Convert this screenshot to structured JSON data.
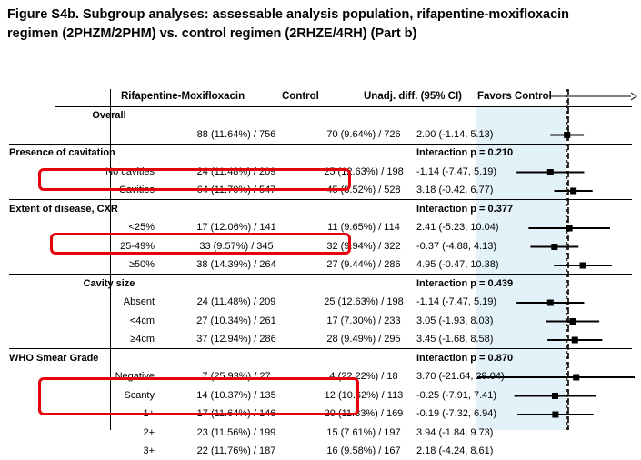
{
  "title_line1": "Figure S4b.  Subgroup analyses: assessable analysis population, rifapentine-moxifloxacin",
  "title_line2": "regimen (2PHZM/2PHM) vs. control regimen (2RHZE/4RH) (Part b)",
  "headers": {
    "col1": "Rifapentine-Moxifloxacin",
    "col2": "Control",
    "col3": "Unadj. diff. (95% CI)",
    "favors": "Favors Control"
  },
  "rows": [
    {
      "type": "group",
      "label": "Overall",
      "col1": "",
      "col2": "",
      "col3": ""
    },
    {
      "type": "data",
      "label": "",
      "col1": "88 (11.64%) / 756",
      "col2": "70 (9.64%) / 726",
      "col3": "2.00 (-1.14, 5.13)",
      "est": 2.0,
      "lo": -1.14,
      "hi": 5.13
    },
    {
      "type": "section",
      "label": "Presence of cavitation",
      "col1": "",
      "col2": "",
      "col3": "Interaction p = 0.210"
    },
    {
      "type": "data",
      "label": "No cavities",
      "col1": "24 (11.48%) / 209",
      "col2": "25 (12.63%) / 198",
      "col3": "-1.14 (-7.47, 5.19)",
      "est": -1.14,
      "lo": -7.47,
      "hi": 5.19
    },
    {
      "type": "data",
      "label": "Cavities",
      "col1": "64 (11.70%) / 547",
      "col2": "45 (8.52%) / 528",
      "col3": "3.18 (-0.42, 6.77)",
      "est": 3.18,
      "lo": -0.42,
      "hi": 6.77
    },
    {
      "type": "section",
      "label": "Extent of disease, CXR",
      "col1": "",
      "col2": "",
      "col3": "Interaction p = 0.377"
    },
    {
      "type": "data",
      "label": "<25%",
      "col1": "17 (12.06%) / 141",
      "col2": "11 (9.65%) / 114",
      "col3": "2.41 (-5.23, 10.04)",
      "est": 2.41,
      "lo": -5.23,
      "hi": 10.04
    },
    {
      "type": "data",
      "label": "25-49%",
      "col1": "33 (9.57%) / 345",
      "col2": "32 (9.94%) / 322",
      "col3": "-0.37 (-4.88, 4.13)",
      "est": -0.37,
      "lo": -4.88,
      "hi": 4.13
    },
    {
      "type": "data",
      "label": "≥50%",
      "col1": "38 (14.39%) / 264",
      "col2": "27 (9.44%) / 286",
      "col3": "4.95 (-0.47, 10.38)",
      "est": 4.95,
      "lo": -0.47,
      "hi": 10.38
    },
    {
      "type": "group",
      "label": "Cavity size",
      "col1": "",
      "col2": "",
      "col3": "Interaction p = 0.439"
    },
    {
      "type": "data",
      "label": "Absent",
      "col1": "24 (11.48%) / 209",
      "col2": "25 (12.63%) / 198",
      "col3": "-1.14 (-7.47, 5.19)",
      "est": -1.14,
      "lo": -7.47,
      "hi": 5.19
    },
    {
      "type": "data",
      "label": "<4cm",
      "col1": "27 (10.34%) / 261",
      "col2": "17 (7.30%) / 233",
      "col3": "3.05 (-1.93, 8.03)",
      "est": 3.05,
      "lo": -1.93,
      "hi": 8.03
    },
    {
      "type": "data",
      "label": "≥4cm",
      "col1": "37 (12.94%) / 286",
      "col2": "28 (9.49%) / 295",
      "col3": "3.45 (-1.68, 8.58)",
      "est": 3.45,
      "lo": -1.68,
      "hi": 8.58
    },
    {
      "type": "section",
      "label": "WHO Smear Grade",
      "col1": "",
      "col2": "",
      "col3": "Interaction p = 0.870"
    },
    {
      "type": "data",
      "label": "Negative",
      "col1": "7 (25.93%) / 27",
      "col2": "4 (22.22%) / 18",
      "col3": "3.70 (-21.64, 29.04)",
      "est": 3.7,
      "lo": -21.64,
      "hi": 29.04
    },
    {
      "type": "data",
      "label": "Scanty",
      "col1": "14 (10.37%) / 135",
      "col2": "12 (10.62%) / 113",
      "col3": "-0.25 (-7.91, 7.41)",
      "est": -0.25,
      "lo": -7.91,
      "hi": 7.41
    },
    {
      "type": "data",
      "label": "1+",
      "col1": "17 (11.64%) / 146",
      "col2": "20 (11.83%) / 169",
      "col3": "-0.19 (-7.32, 6.94)",
      "est": -0.19,
      "lo": -7.32,
      "hi": 6.94
    },
    {
      "type": "data",
      "label": "2+",
      "col1": "23 (11.56%) / 199",
      "col2": "15 (7.61%) / 197",
      "col3": "3.94 (-1.84, 9.73)",
      "est": 3.94,
      "lo": -1.84,
      "hi": 9.73
    },
    {
      "type": "data",
      "label": "3+",
      "col1": "22 (11.76%) / 187",
      "col2": "16 (9.58%) / 167",
      "col3": "2.18 (-4.24, 8.61)",
      "est": 2.18,
      "lo": -4.24,
      "hi": 8.61
    }
  ],
  "colors": {
    "shade": "#e3f1f8",
    "highlight": "#e8000b",
    "ink": "#000000"
  },
  "chart_data": {
    "type": "forest",
    "x_reference_lines": [
      0,
      2.0
    ],
    "xlim": [
      -15,
      15
    ],
    "series": [
      {
        "label": "Overall",
        "est": 2.0,
        "lo": -1.14,
        "hi": 5.13
      },
      {
        "label": "No cavities",
        "est": -1.14,
        "lo": -7.47,
        "hi": 5.19
      },
      {
        "label": "Cavities",
        "est": 3.18,
        "lo": -0.42,
        "hi": 6.77
      },
      {
        "label": "<25%",
        "est": 2.41,
        "lo": -5.23,
        "hi": 10.04
      },
      {
        "label": "25-49%",
        "est": -0.37,
        "lo": -4.88,
        "hi": 4.13
      },
      {
        "label": "≥50%",
        "est": 4.95,
        "lo": -0.47,
        "hi": 10.38
      },
      {
        "label": "Absent",
        "est": -1.14,
        "lo": -7.47,
        "hi": 5.19
      },
      {
        "label": "<4cm",
        "est": 3.05,
        "lo": -1.93,
        "hi": 8.03
      },
      {
        "label": "≥4cm",
        "est": 3.45,
        "lo": -1.68,
        "hi": 8.58
      },
      {
        "label": "Negative",
        "est": 3.7,
        "lo": -21.64,
        "hi": 29.04
      },
      {
        "label": "Scanty",
        "est": -0.25,
        "lo": -7.91,
        "hi": 7.41
      },
      {
        "label": "1+",
        "est": -0.19,
        "lo": -7.32,
        "hi": 6.94
      },
      {
        "label": "2+",
        "est": 3.94,
        "lo": -1.84,
        "hi": 9.73
      },
      {
        "label": "3+",
        "est": 2.18,
        "lo": -4.24,
        "hi": 8.61
      }
    ]
  }
}
